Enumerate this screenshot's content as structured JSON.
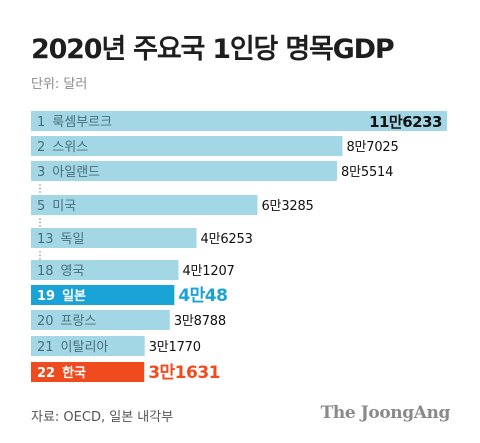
{
  "title": "2020년 주요국 1인당 명목GDP",
  "unit_label": "단위: 달러",
  "source": "자료: OECD, 일본 내각부",
  "brand": "The JoongAng",
  "colors": {
    "bar_default": "#a3d7e5",
    "bar_highlight_japan": "#1aa3d6",
    "bar_highlight_korea": "#ef4b1e",
    "value_highlight_japan": "#1aa3d6",
    "value_highlight_korea": "#ef4b1e"
  },
  "chart_data": {
    "type": "bar",
    "orientation": "horizontal",
    "title": "2020년 주요국 1인당 명목GDP",
    "unit": "단위: 달러",
    "xlabel": "",
    "ylabel": "",
    "grid": false,
    "legend": "none",
    "xlim": [
      0,
      116233
    ],
    "categories": [
      "1 룩셈부르크",
      "2 스위스",
      "3 아일랜드",
      "5 미국",
      "13 독일",
      "18 영국",
      "19 일본",
      "20 프랑스",
      "21 이탈리아",
      "22 한국"
    ],
    "values": [
      116233,
      87025,
      85514,
      63285,
      46253,
      41207,
      40048,
      38788,
      31770,
      31631
    ],
    "value_labels": [
      "11만6233",
      "8만7025",
      "8만5514",
      "6만3285",
      "4만6253",
      "4만1207",
      "4만48",
      "3만8788",
      "3만1770",
      "3만1631"
    ],
    "highlight": [
      "default",
      "default",
      "default",
      "default",
      "default",
      "default",
      "japan",
      "default",
      "default",
      "korea"
    ]
  }
}
